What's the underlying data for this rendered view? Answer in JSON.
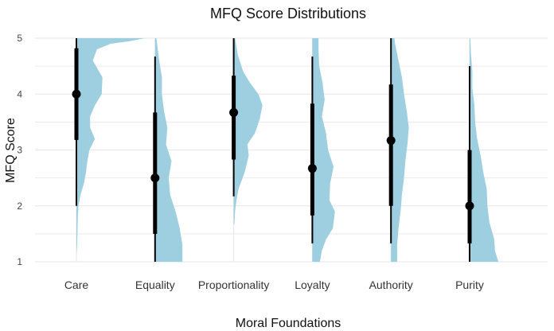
{
  "colors": {
    "violin_fill": "#9ecfe0",
    "whisker": "#000000",
    "grid": "#e6e6e6"
  },
  "chart_data": {
    "type": "violin",
    "title": "MFQ Score Distributions",
    "xlabel": "Moral Foundations",
    "ylabel": "MFQ Score",
    "ylim": [
      1,
      5
    ],
    "yticks": [
      1,
      2,
      3,
      4,
      5
    ],
    "grid": true,
    "categories": [
      "Care",
      "Equality",
      "Proportionality",
      "Loyalty",
      "Authority",
      "Purity"
    ],
    "series": [
      {
        "category": "Care",
        "median": 4.0,
        "interval_66": [
          3.18,
          4.82
        ],
        "interval_95": [
          2.0,
          5.0
        ],
        "density": [
          [
            1.17,
            0.005
          ],
          [
            1.3,
            0.01
          ],
          [
            1.5,
            0.015
          ],
          [
            1.8,
            0.02
          ],
          [
            2.0,
            0.03
          ],
          [
            2.2,
            0.06
          ],
          [
            2.4,
            0.11
          ],
          [
            2.6,
            0.14
          ],
          [
            2.8,
            0.16
          ],
          [
            3.0,
            0.19
          ],
          [
            3.2,
            0.27
          ],
          [
            3.4,
            0.2
          ],
          [
            3.6,
            0.2
          ],
          [
            3.8,
            0.27
          ],
          [
            4.0,
            0.37
          ],
          [
            4.3,
            0.38
          ],
          [
            4.6,
            0.24
          ],
          [
            4.8,
            0.3
          ],
          [
            4.9,
            0.5
          ],
          [
            4.95,
            0.8
          ],
          [
            5.0,
            1.0
          ]
        ]
      },
      {
        "category": "Equality",
        "median": 2.5,
        "interval_66": [
          1.5,
          3.67
        ],
        "interval_95": [
          1.0,
          4.67
        ],
        "density": [
          [
            1.0,
            0.4
          ],
          [
            1.3,
            0.4
          ],
          [
            1.6,
            0.36
          ],
          [
            1.9,
            0.3
          ],
          [
            2.2,
            0.22
          ],
          [
            2.5,
            0.2
          ],
          [
            2.8,
            0.24
          ],
          [
            3.1,
            0.16
          ],
          [
            3.4,
            0.18
          ],
          [
            3.7,
            0.13
          ],
          [
            4.0,
            0.1
          ],
          [
            4.3,
            0.1
          ],
          [
            4.6,
            0.06
          ],
          [
            4.8,
            0.04
          ],
          [
            5.0,
            0.02
          ]
        ]
      },
      {
        "category": "Proportionality",
        "median": 3.67,
        "interval_66": [
          2.83,
          4.33
        ],
        "interval_95": [
          2.17,
          5.0
        ],
        "density": [
          [
            1.67,
            0.01
          ],
          [
            1.9,
            0.02
          ],
          [
            2.1,
            0.04
          ],
          [
            2.3,
            0.07
          ],
          [
            2.6,
            0.16
          ],
          [
            2.9,
            0.22
          ],
          [
            3.1,
            0.2
          ],
          [
            3.3,
            0.31
          ],
          [
            3.55,
            0.38
          ],
          [
            3.8,
            0.42
          ],
          [
            4.0,
            0.36
          ],
          [
            4.2,
            0.24
          ],
          [
            4.4,
            0.14
          ],
          [
            4.7,
            0.06
          ],
          [
            5.0,
            0.02
          ]
        ]
      },
      {
        "category": "Loyalty",
        "median": 2.67,
        "interval_66": [
          1.83,
          3.83
        ],
        "interval_95": [
          1.33,
          4.67
        ],
        "density": [
          [
            1.0,
            0.11
          ],
          [
            1.2,
            0.14
          ],
          [
            1.4,
            0.2
          ],
          [
            1.6,
            0.3
          ],
          [
            1.9,
            0.33
          ],
          [
            2.1,
            0.25
          ],
          [
            2.4,
            0.26
          ],
          [
            2.7,
            0.31
          ],
          [
            3.0,
            0.23
          ],
          [
            3.3,
            0.2
          ],
          [
            3.6,
            0.14
          ],
          [
            3.9,
            0.18
          ],
          [
            4.2,
            0.15
          ],
          [
            4.5,
            0.1
          ],
          [
            4.8,
            0.09
          ],
          [
            5.0,
            0.09
          ]
        ]
      },
      {
        "category": "Authority",
        "median": 3.17,
        "interval_66": [
          2.0,
          4.17
        ],
        "interval_95": [
          1.33,
          5.0
        ],
        "density": [
          [
            1.0,
            0.09
          ],
          [
            1.3,
            0.09
          ],
          [
            1.6,
            0.11
          ],
          [
            1.9,
            0.14
          ],
          [
            2.2,
            0.16
          ],
          [
            2.5,
            0.19
          ],
          [
            2.8,
            0.21
          ],
          [
            3.1,
            0.24
          ],
          [
            3.4,
            0.26
          ],
          [
            3.7,
            0.23
          ],
          [
            4.0,
            0.19
          ],
          [
            4.3,
            0.16
          ],
          [
            4.6,
            0.11
          ],
          [
            4.9,
            0.06
          ],
          [
            5.0,
            0.05
          ]
        ]
      },
      {
        "category": "Purity",
        "median": 2.0,
        "interval_66": [
          1.33,
          3.0
        ],
        "interval_95": [
          1.0,
          4.5
        ],
        "density": [
          [
            1.0,
            0.42
          ],
          [
            1.2,
            0.37
          ],
          [
            1.4,
            0.36
          ],
          [
            1.7,
            0.29
          ],
          [
            2.0,
            0.26
          ],
          [
            2.3,
            0.25
          ],
          [
            2.6,
            0.2
          ],
          [
            2.9,
            0.16
          ],
          [
            3.2,
            0.11
          ],
          [
            3.5,
            0.08
          ],
          [
            3.8,
            0.07
          ],
          [
            4.1,
            0.04
          ],
          [
            4.4,
            0.04
          ],
          [
            4.7,
            0.02
          ],
          [
            5.0,
            0.01
          ]
        ]
      }
    ]
  }
}
